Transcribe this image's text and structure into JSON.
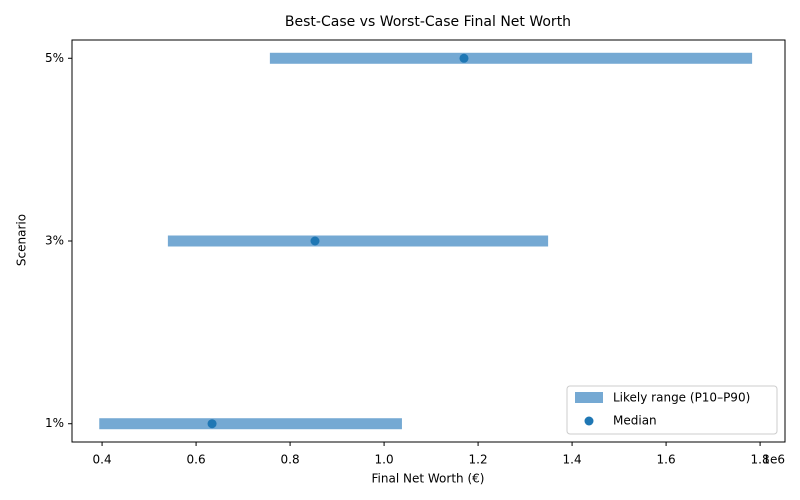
{
  "chart_data": {
    "type": "range",
    "title": "Best-Case vs Worst-Case Final Net Worth",
    "xlabel": "Final Net Worth (€)",
    "ylabel": "Scenario",
    "x_offset_label": "1e6",
    "categories": [
      "1%",
      "3%",
      "5%"
    ],
    "series": [
      {
        "name": "Likely range (P10–P90)",
        "color": "#75a9d3",
        "low": [
          0.394,
          0.54,
          0.757
        ],
        "high": [
          1.038,
          1.349,
          1.783
        ]
      },
      {
        "name": "Median",
        "color": "#1f77b4",
        "values": [
          0.634,
          0.853,
          1.17
        ]
      }
    ],
    "xlim": [
      0.336,
      1.853
    ],
    "xticks": [
      0.4,
      0.6,
      0.8,
      {
        "value": 1,
        "label": "1.0"
      },
      1.2,
      1.4,
      1.6,
      1.8
    ],
    "legend": "lower right"
  }
}
